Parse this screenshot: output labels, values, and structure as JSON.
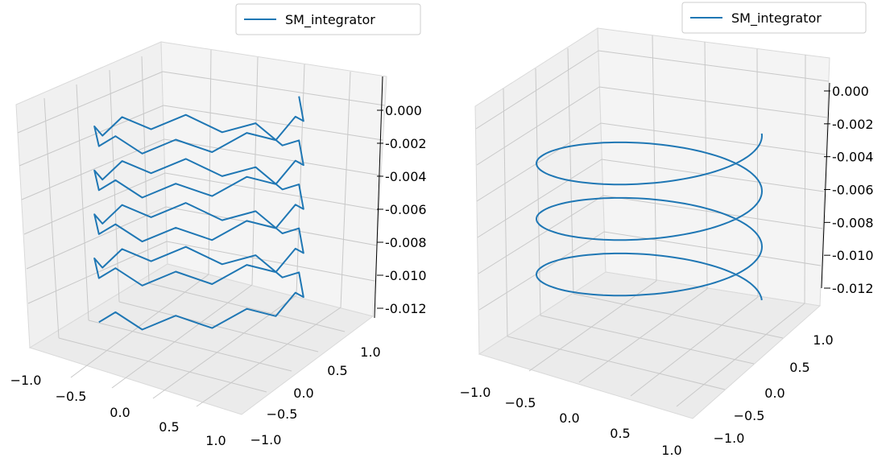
{
  "chart_data": [
    {
      "type": "line",
      "projection": "3d",
      "title": "",
      "grid": true,
      "legend": "top-right",
      "series": [
        {
          "name": "SM_integrator",
          "color": "#1f77b4",
          "samples_per_turn": 18,
          "turns": 4.5,
          "z_start": 0.0,
          "z_end": -0.0125,
          "jitter": true
        }
      ],
      "x_ticks": [
        "−1.0",
        "−0.5",
        "0.0",
        "0.5",
        "1.0"
      ],
      "y_ticks": [
        "−1.0",
        "−0.5",
        "0.0",
        "0.5",
        "1.0"
      ],
      "z_ticks": [
        "0.000",
        "-0.002",
        "-0.004",
        "-0.006",
        "-0.008",
        "-0.010",
        "-0.012"
      ],
      "xlim": [
        -1.2,
        1.2
      ],
      "ylim": [
        -1.2,
        1.2
      ],
      "zlim": [
        -0.013,
        0.001
      ]
    },
    {
      "type": "line",
      "projection": "3d",
      "title": "",
      "grid": true,
      "legend": "top-right",
      "series": [
        {
          "name": "SM_integrator",
          "color": "#1f77b4",
          "samples_per_turn": 120,
          "turns": 3.0,
          "z_start": -0.002,
          "z_end": -0.0125,
          "jitter": false
        }
      ],
      "x_ticks": [
        "−1.0",
        "−0.5",
        "0.0",
        "0.5",
        "1.0"
      ],
      "y_ticks": [
        "−1.0",
        "−0.5",
        "0.0",
        "0.5",
        "1.0"
      ],
      "z_ticks": [
        "0.000",
        "-0.002",
        "-0.004",
        "-0.006",
        "-0.008",
        "-0.010",
        "-0.012"
      ],
      "xlim": [
        -1.2,
        1.2
      ],
      "ylim": [
        -1.2,
        1.2
      ],
      "zlim": [
        -0.013,
        0.001
      ]
    }
  ]
}
